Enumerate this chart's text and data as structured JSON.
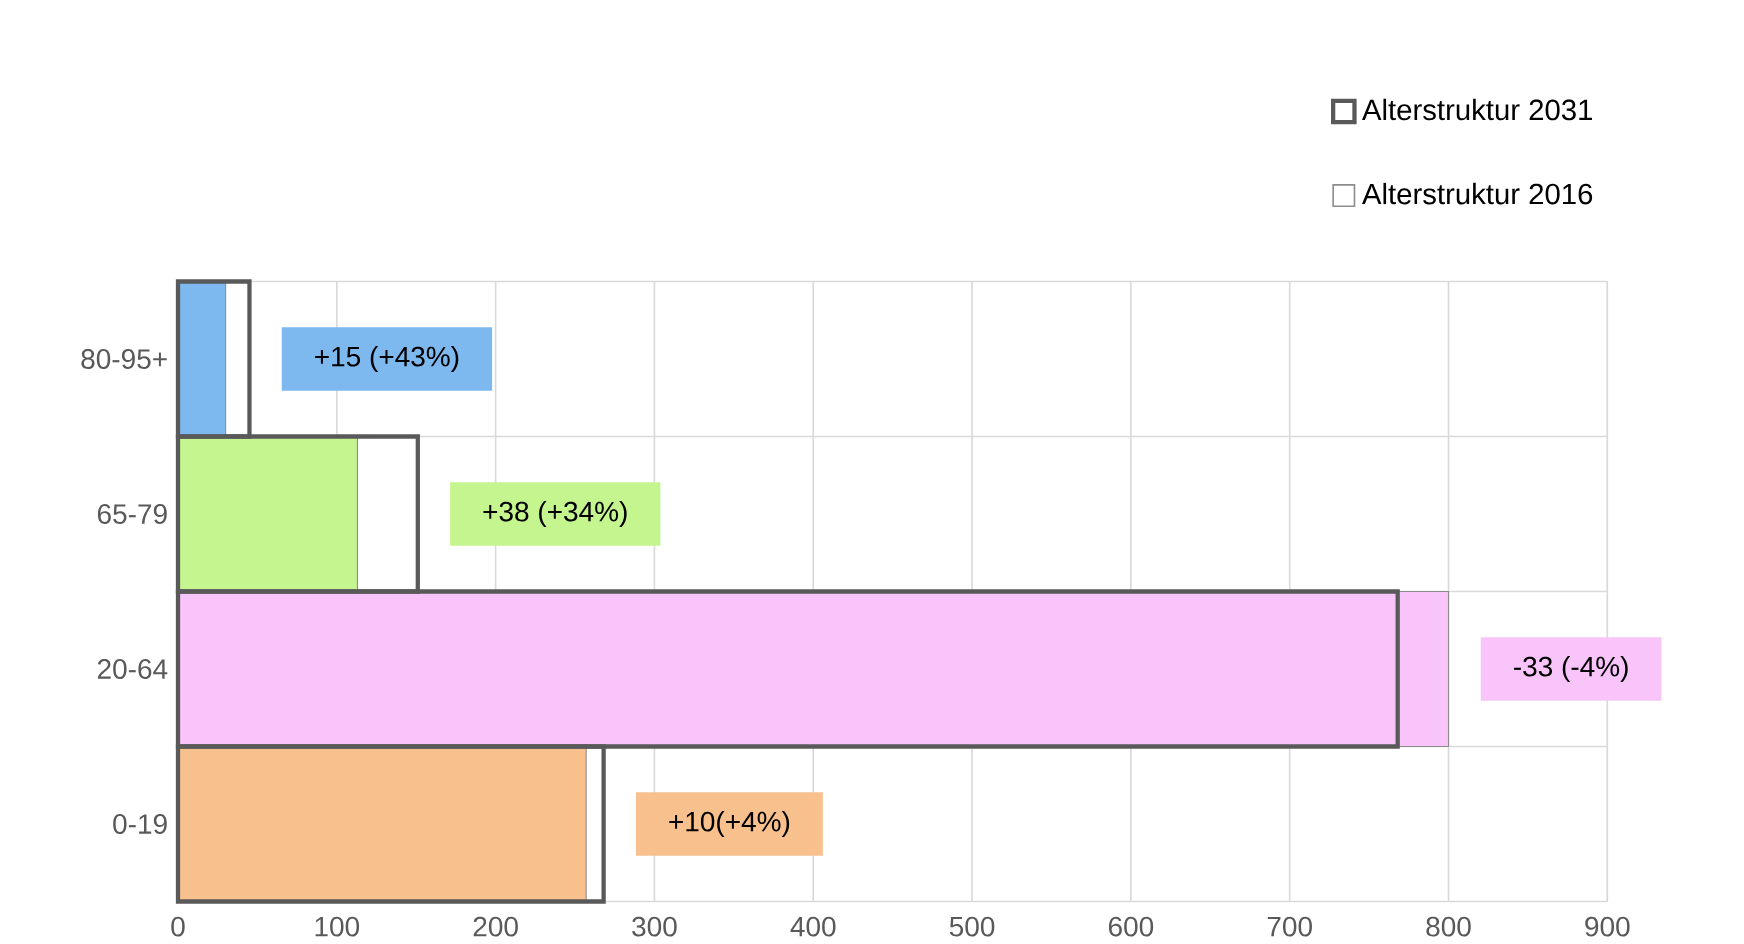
{
  "chart_data": {
    "type": "bar",
    "orientation": "horizontal",
    "categories": [
      "80-95+",
      "65-79",
      "20-64",
      "0-19"
    ],
    "series": [
      {
        "name": "Alterstruktur 2031",
        "color": "#595959",
        "values": [
          45,
          151,
          768,
          268
        ]
      },
      {
        "name": "Alterstruktur 2016",
        "colors": [
          "#7db8ee",
          "#c5f58e",
          "#f8c4fa",
          "#f8c08c"
        ],
        "values": [
          30,
          113,
          800,
          257
        ]
      }
    ],
    "xlim": [
      0,
      900
    ],
    "xticks": [
      0,
      100,
      200,
      300,
      400,
      500,
      600,
      700,
      800,
      900
    ],
    "grid": true,
    "legend": "top right",
    "annotations": [
      "+15 (+43%)",
      "+38 (+34%)",
      "-33 (-4%)",
      "+10(+4%)"
    ]
  }
}
